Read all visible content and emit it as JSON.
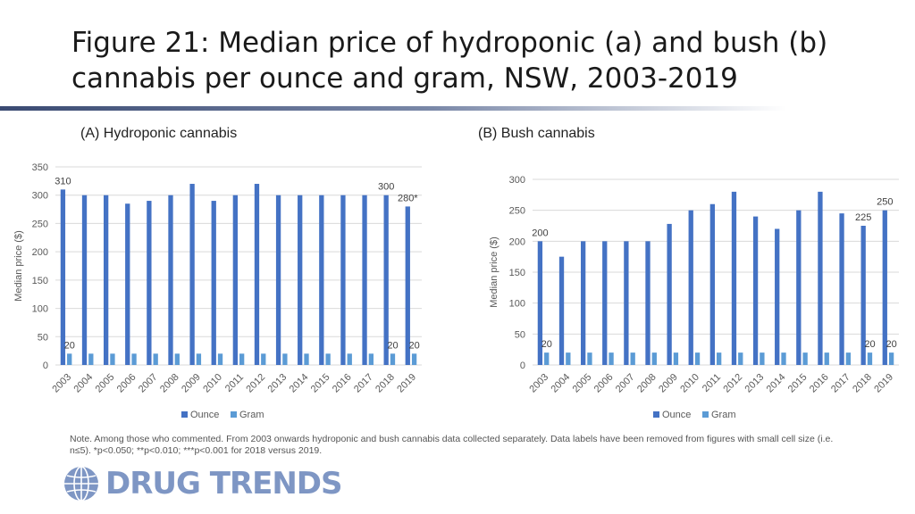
{
  "page": {
    "title": "Figure 21: Median price of hydroponic (a) and bush (b) cannabis per ounce and gram, NSW, 2003-2019",
    "note": "Note. Among those who commented. From 2003 onwards hydroponic and bush cannabis data collected separately. Data labels have been removed from figures with small cell size (i.e. n≤5).  *p<0.050; **p<0.010; ***p<0.001 for 2018 versus 2019.",
    "logo_text": "DRUG TRENDS",
    "logo_icon": "globe-icon"
  },
  "colors": {
    "ounce": "#4472c4",
    "gram": "#5b9bd5",
    "axis_text": "#595959",
    "grid": "#d9d9d9"
  },
  "chart_data": [
    {
      "type": "bar",
      "title": "(A) Hydroponic cannabis",
      "ylabel": "Median price ($)",
      "xlabel": "",
      "ylim": [
        0,
        350
      ],
      "yticks": [
        0,
        50,
        100,
        150,
        200,
        250,
        300,
        350
      ],
      "grid": true,
      "legend": "bottom",
      "categories": [
        "2003",
        "2004",
        "2005",
        "2006",
        "2007",
        "2008",
        "2009",
        "2010",
        "2011",
        "2012",
        "2013",
        "2014",
        "2015",
        "2016",
        "2017",
        "2018",
        "2019"
      ],
      "series": [
        {
          "name": "Ounce",
          "values": [
            310,
            300,
            300,
            285,
            290,
            300,
            320,
            290,
            300,
            320,
            300,
            300,
            300,
            300,
            300,
            300,
            280
          ],
          "labels": [
            "310",
            "",
            "",
            "",
            "",
            "",
            "",
            "",
            "",
            "",
            "",
            "",
            "",
            "",
            "",
            "300",
            "280*"
          ]
        },
        {
          "name": "Gram",
          "values": [
            20,
            20,
            20,
            20,
            20,
            20,
            20,
            20,
            20,
            20,
            20,
            20,
            20,
            20,
            20,
            20,
            20
          ],
          "labels": [
            "20",
            "",
            "",
            "",
            "",
            "",
            "",
            "",
            "",
            "",
            "",
            "",
            "",
            "",
            "",
            "20",
            "20"
          ]
        }
      ]
    },
    {
      "type": "bar",
      "title": "(B) Bush cannabis",
      "ylabel": "Median price ($)",
      "xlabel": "",
      "ylim": [
        0,
        300
      ],
      "yticks": [
        0,
        50,
        100,
        150,
        200,
        250,
        300
      ],
      "grid": true,
      "legend": "bottom",
      "categories": [
        "2003",
        "2004",
        "2005",
        "2006",
        "2007",
        "2008",
        "2009",
        "2010",
        "2011",
        "2012",
        "2013",
        "2014",
        "2015",
        "2016",
        "2017",
        "2018",
        "2019"
      ],
      "series": [
        {
          "name": "Ounce",
          "values": [
            200,
            175,
            200,
            200,
            200,
            200,
            228,
            250,
            260,
            280,
            240,
            220,
            250,
            280,
            245,
            225,
            250
          ],
          "labels": [
            "200",
            "",
            "",
            "",
            "",
            "",
            "",
            "",
            "",
            "",
            "",
            "",
            "",
            "",
            "",
            "225",
            "250"
          ]
        },
        {
          "name": "Gram",
          "values": [
            20,
            20,
            20,
            20,
            20,
            20,
            20,
            20,
            20,
            20,
            20,
            20,
            20,
            20,
            20,
            20,
            20
          ],
          "labels": [
            "20",
            "",
            "",
            "",
            "",
            "",
            "",
            "",
            "",
            "",
            "",
            "",
            "",
            "",
            "",
            "20",
            "20"
          ]
        }
      ]
    }
  ]
}
